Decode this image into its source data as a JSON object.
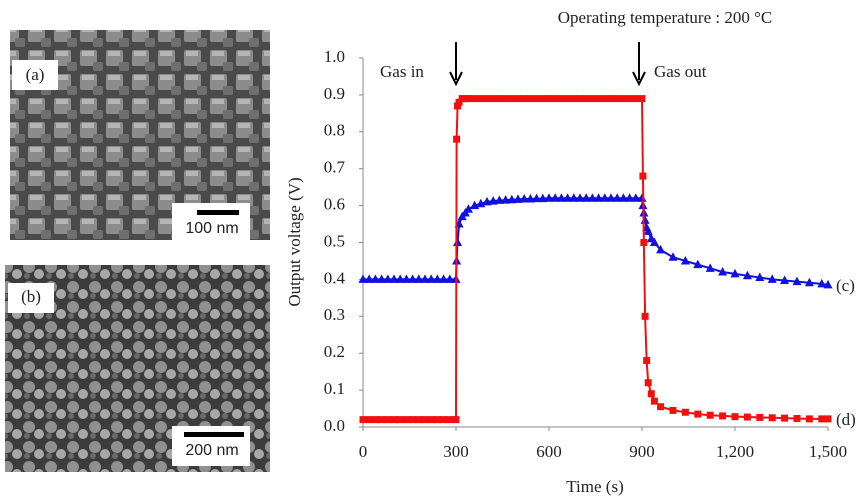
{
  "images": [
    {
      "label": "(a)",
      "scale_bar": "100 nm"
    },
    {
      "label": "(b)",
      "scale_bar": "200 nm"
    }
  ],
  "chart_data": {
    "type": "line",
    "title": "Operating temperature : 200 °C",
    "x_label": "Time (s)",
    "y_label": "Output voltage (V)",
    "annotations": [
      "Gas in",
      "Gas out"
    ],
    "xlim": [
      0,
      1500
    ],
    "xticks": [
      0,
      300,
      600,
      900,
      {
        "value": 1200,
        "label": "1,200"
      },
      {
        "value": 1500,
        "label": "1,500"
      }
    ],
    "ylim": [
      0,
      1
    ],
    "yticks": [
      {
        "value": 0,
        "label": "0.0"
      },
      0.1,
      0.2,
      0.3,
      0.4,
      0.5,
      0.6,
      0.7,
      0.8,
      0.9,
      {
        "value": 1,
        "label": "1.0"
      }
    ],
    "x": [
      0,
      20,
      40,
      60,
      80,
      100,
      120,
      140,
      160,
      180,
      200,
      220,
      240,
      260,
      280,
      300,
      302,
      305,
      310,
      320,
      330,
      340,
      360,
      380,
      400,
      420,
      440,
      460,
      480,
      500,
      520,
      540,
      560,
      580,
      600,
      620,
      640,
      660,
      680,
      700,
      720,
      740,
      760,
      780,
      800,
      820,
      840,
      860,
      880,
      900,
      903,
      906,
      910,
      915,
      920,
      930,
      940,
      960,
      1000,
      1040,
      1080,
      1120,
      1160,
      1200,
      1240,
      1280,
      1320,
      1360,
      1400,
      1440,
      1480,
      1500
    ],
    "series": [
      {
        "name": "(c)",
        "color": "#1010e0",
        "marker": "triangle",
        "values": [
          0.4,
          0.4,
          0.4,
          0.4,
          0.4,
          0.4,
          0.4,
          0.4,
          0.4,
          0.4,
          0.4,
          0.4,
          0.4,
          0.4,
          0.4,
          0.4,
          0.45,
          0.5,
          0.55,
          0.57,
          0.58,
          0.59,
          0.6,
          0.605,
          0.61,
          0.612,
          0.614,
          0.615,
          0.616,
          0.617,
          0.618,
          0.618,
          0.619,
          0.619,
          0.62,
          0.62,
          0.62,
          0.62,
          0.62,
          0.62,
          0.62,
          0.62,
          0.62,
          0.62,
          0.62,
          0.62,
          0.62,
          0.62,
          0.62,
          0.62,
          0.6,
          0.58,
          0.56,
          0.54,
          0.53,
          0.51,
          0.5,
          0.48,
          0.46,
          0.45,
          0.44,
          0.43,
          0.42,
          0.415,
          0.41,
          0.405,
          0.4,
          0.397,
          0.394,
          0.391,
          0.388,
          0.385
        ]
      },
      {
        "name": "(d)",
        "color": "#f01010",
        "marker": "square",
        "values": [
          0.02,
          0.02,
          0.02,
          0.02,
          0.02,
          0.02,
          0.02,
          0.02,
          0.02,
          0.02,
          0.02,
          0.02,
          0.02,
          0.02,
          0.02,
          0.02,
          0.78,
          0.87,
          0.88,
          0.89,
          0.89,
          0.89,
          0.89,
          0.89,
          0.89,
          0.89,
          0.89,
          0.89,
          0.89,
          0.89,
          0.89,
          0.89,
          0.89,
          0.89,
          0.89,
          0.89,
          0.89,
          0.89,
          0.89,
          0.89,
          0.89,
          0.89,
          0.89,
          0.89,
          0.89,
          0.89,
          0.89,
          0.89,
          0.89,
          0.89,
          0.68,
          0.5,
          0.3,
          0.18,
          0.12,
          0.09,
          0.07,
          0.055,
          0.045,
          0.04,
          0.035,
          0.032,
          0.03,
          0.028,
          0.027,
          0.026,
          0.025,
          0.024,
          0.023,
          0.022,
          0.022,
          0.022
        ]
      }
    ]
  }
}
